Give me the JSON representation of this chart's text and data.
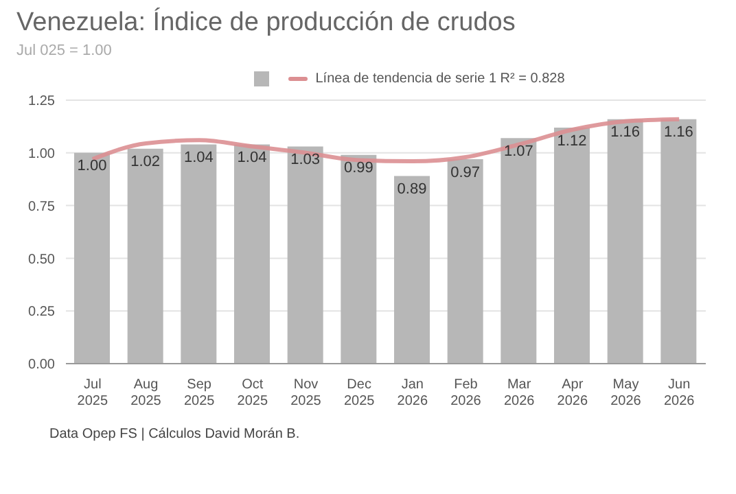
{
  "chart_data": {
    "type": "bar",
    "title": "Venezuela: Índice de producción de crudos",
    "subtitle": "Jul 025 = 1.00",
    "categories": [
      "Jul 2025",
      "Aug 2025",
      "Sep 2025",
      "Oct 2025",
      "Nov 2025",
      "Dec 2025",
      "Jan 2026",
      "Feb 2026",
      "Mar 2026",
      "Apr 2026",
      "May 2026",
      "Jun 2026"
    ],
    "series": [
      {
        "color": "#b7b7b7",
        "values": [
          1.0,
          1.02,
          1.04,
          1.04,
          1.03,
          0.99,
          0.89,
          0.97,
          1.07,
          1.12,
          1.16,
          1.16
        ],
        "value_labels": [
          "1.00",
          "1.02",
          "1.04",
          "1.04",
          "1.03",
          "0.99",
          "0.89",
          "0.97",
          "1.07",
          "1.12",
          "1.16",
          "1.16"
        ]
      },
      {
        "type": "line",
        "name": "Línea de tendencia de serie 1 R² = 0.828",
        "color": "#dc8f92",
        "values": [
          0.97,
          1.045,
          1.06,
          1.03,
          1.0,
          0.965,
          0.96,
          0.98,
          1.04,
          1.11,
          1.15,
          1.16
        ]
      }
    ],
    "ylim": [
      0,
      1.25
    ],
    "yticks": [
      {
        "value": 0,
        "label": "0.00"
      },
      {
        "value": 0.25,
        "label": "0.25"
      },
      {
        "value": 0.5,
        "label": "0.50"
      },
      {
        "value": 0.75,
        "label": "0.75"
      },
      {
        "value": 1,
        "label": "1.00"
      },
      {
        "value": 1.25,
        "label": "1.25"
      }
    ],
    "grid": "y",
    "legend": "top",
    "marker": "none",
    "annotations": [
      "Data Opep FS | Cálculos David Morán B."
    ]
  }
}
